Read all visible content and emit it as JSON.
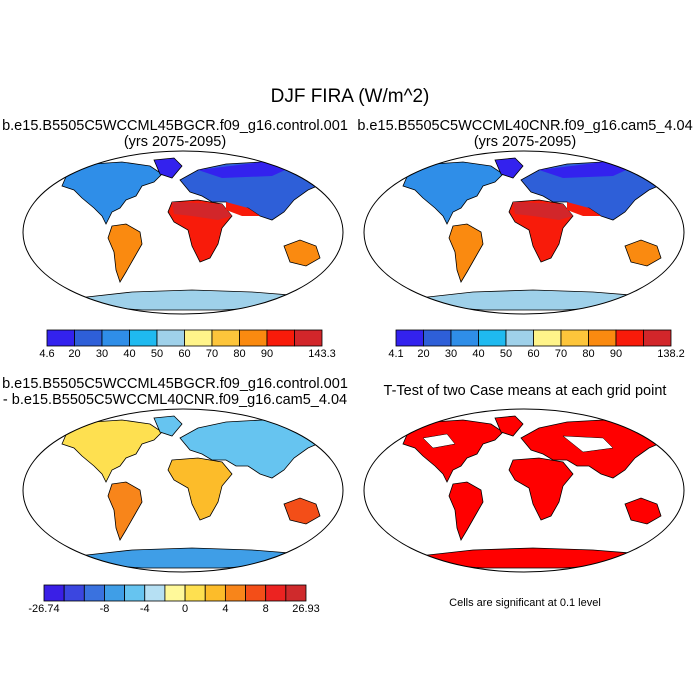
{
  "title": "DJF FIRA (W/m^2)",
  "panels": [
    {
      "id": "case1",
      "title_lines": [
        "b.e15.B5505C5WCCML45BGCR.f09_g16.control.001",
        "(yrs 2075-2095)"
      ]
    },
    {
      "id": "case2",
      "title_lines": [
        "b.e15.B5505C5WCCML40CNR.f09_g16.cam5_4.04",
        "(yrs 2075-2095)"
      ]
    },
    {
      "id": "diff",
      "title_lines": [
        "b.e15.B5505C5WCCML45BGCR.f09_g16.control.001",
        "- b.e15.B5505C5WCCML40CNR.f09_g16.cam5_4.04"
      ]
    },
    {
      "id": "ttest",
      "title_lines": [
        "T-Test of two Case means at each grid point"
      ]
    }
  ],
  "colorbars": {
    "case1": {
      "labels": [
        "4.6",
        "20",
        "30",
        "40",
        "50",
        "60",
        "70",
        "80",
        "90",
        "143.3"
      ],
      "colors": [
        "#3322ee",
        "#2e5fd8",
        "#2f8ee8",
        "#1fbaf0",
        "#9fd1ea",
        "#fff48a",
        "#fdc53b",
        "#fa8a10",
        "#f81b0a",
        "#d2262a"
      ]
    },
    "case2": {
      "labels": [
        "4.1",
        "20",
        "30",
        "40",
        "50",
        "60",
        "70",
        "80",
        "90",
        "138.2"
      ],
      "colors": [
        "#3322ee",
        "#2e5fd8",
        "#2f8ee8",
        "#1fbaf0",
        "#9fd1ea",
        "#fff48a",
        "#fdc53b",
        "#fa8a10",
        "#f81b0a",
        "#d2262a"
      ]
    },
    "diff": {
      "labels": [
        "-26.74",
        "-8",
        "-4",
        "0",
        "4",
        "8",
        "26.93"
      ],
      "colors": [
        "#3a1fe6",
        "#3b46e0",
        "#3a72df",
        "#3f9ee7",
        "#66c4f0",
        "#b6e0f3",
        "#fff99a",
        "#fee050",
        "#fcbc2a",
        "#f8851a",
        "#f34e18",
        "#ec2321",
        "#cf2a2c"
      ]
    }
  },
  "significance_note": "Cells are significant at 0.1 level",
  "colors": {
    "land_outline": "#000000",
    "significant": "#ff0000",
    "ocean": "#ffffff"
  }
}
